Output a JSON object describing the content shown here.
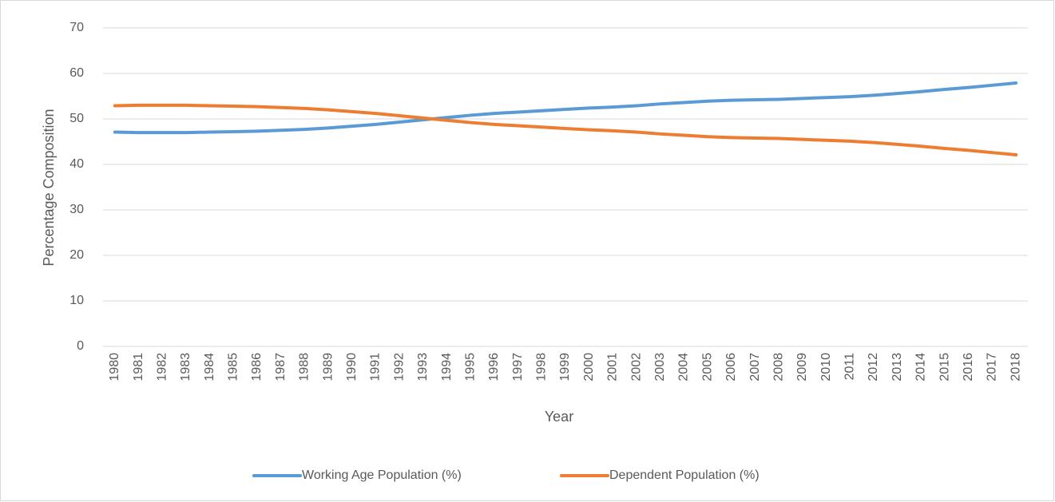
{
  "chart_data": {
    "type": "line",
    "x_label": "Year",
    "y_label": "Percentage Composition",
    "categories": [
      "1980",
      "1981",
      "1982",
      "1983",
      "1984",
      "1985",
      "1986",
      "1987",
      "1988",
      "1989",
      "1990",
      "1991",
      "1992",
      "1993",
      "1994",
      "1995",
      "1996",
      "1997",
      "1998",
      "1999",
      "2000",
      "2001",
      "2002",
      "2003",
      "2004",
      "2005",
      "2006",
      "2007",
      "2008",
      "2009",
      "2010",
      "2011",
      "2012",
      "2013",
      "2014",
      "2015",
      "2016",
      "2017",
      "2018"
    ],
    "series": [
      {
        "name": "Working Age Population (%)",
        "color": "#5b9bd5",
        "values": [
          47.1,
          47.0,
          47.0,
          47.0,
          47.1,
          47.2,
          47.3,
          47.5,
          47.7,
          48.0,
          48.4,
          48.8,
          49.3,
          49.8,
          50.3,
          50.8,
          51.2,
          51.5,
          51.8,
          52.1,
          52.4,
          52.6,
          52.9,
          53.3,
          53.6,
          53.9,
          54.1,
          54.2,
          54.3,
          54.5,
          54.7,
          54.9,
          55.2,
          55.6,
          56.0,
          56.5,
          56.9,
          57.4,
          57.9
        ]
      },
      {
        "name": "Dependent Population (%)",
        "color": "#ed7d31",
        "values": [
          52.9,
          53.0,
          53.0,
          53.0,
          52.9,
          52.8,
          52.7,
          52.5,
          52.3,
          52.0,
          51.6,
          51.2,
          50.7,
          50.2,
          49.7,
          49.2,
          48.8,
          48.5,
          48.2,
          47.9,
          47.6,
          47.4,
          47.1,
          46.7,
          46.4,
          46.1,
          45.9,
          45.8,
          45.7,
          45.5,
          45.3,
          45.1,
          44.8,
          44.4,
          44.0,
          43.5,
          43.1,
          42.6,
          42.1
        ]
      }
    ],
    "ylim": [
      0,
      70
    ],
    "yticks": [
      0,
      10,
      20,
      30,
      40,
      50,
      60,
      70
    ],
    "grid": true,
    "legend": "bottom"
  }
}
